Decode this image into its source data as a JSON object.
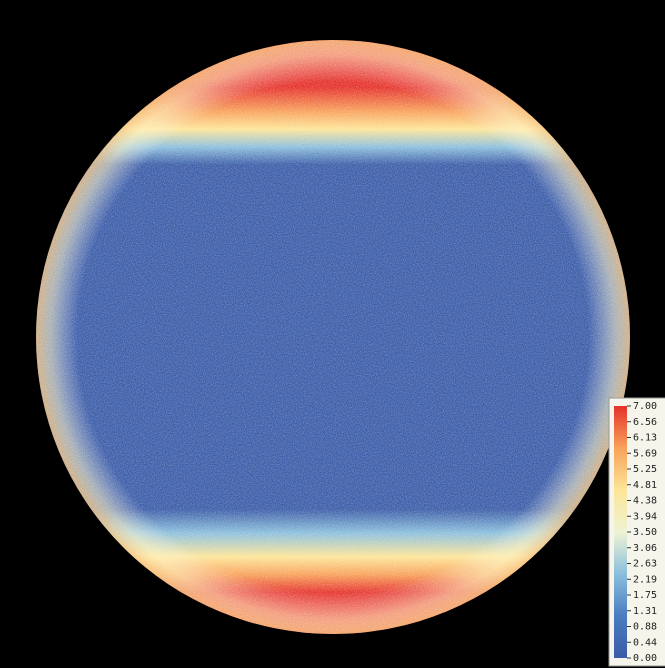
{
  "chart_data": {
    "type": "heatmap",
    "zlim": [
      0,
      7
    ],
    "colormap": [
      "#3b5ca8",
      "#4a7cc0",
      "#8bbfdc",
      "#eef3d4",
      "#fde597",
      "#f8a15a",
      "#e5312a"
    ],
    "zticks": [
      {
        "value": 7,
        "label": "7.00"
      },
      {
        "value": 6.5625,
        "label": "6.56"
      },
      {
        "value": 6.125,
        "label": "6.13"
      },
      {
        "value": 5.6875,
        "label": "5.69"
      },
      {
        "value": 5.25,
        "label": "5.25"
      },
      {
        "value": 4.8125,
        "label": "4.81"
      },
      {
        "value": 4.375,
        "label": "4.38"
      },
      {
        "value": 3.9375,
        "label": "3.94"
      },
      {
        "value": 3.5,
        "label": "3.50"
      },
      {
        "value": 3.0625,
        "label": "3.06"
      },
      {
        "value": 2.625,
        "label": "2.63"
      },
      {
        "value": 2.1875,
        "label": "2.19"
      },
      {
        "value": 1.75,
        "label": "1.75"
      },
      {
        "value": 1.3125,
        "label": "1.31"
      },
      {
        "value": 0.875,
        "label": "0.88"
      },
      {
        "value": 0.4375,
        "label": "0.44"
      },
      {
        "value": 0,
        "label": "0.00"
      }
    ]
  }
}
